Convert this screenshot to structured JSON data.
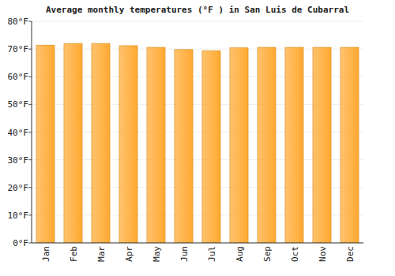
{
  "chart_data": {
    "type": "bar",
    "title": "Average monthly temperatures (°F ) in San Luis de Cubarral",
    "categories": [
      "Jan",
      "Feb",
      "Mar",
      "Apr",
      "May",
      "Jun",
      "Jul",
      "Aug",
      "Sep",
      "Oct",
      "Nov",
      "Dec"
    ],
    "values": [
      71.4,
      72,
      72,
      71.2,
      70.6,
      69.8,
      69.4,
      70.4,
      70.6,
      70.6,
      70.6,
      70.6
    ],
    "color": "#ffa930",
    "ylim": [
      0,
      80
    ],
    "yticks": [
      {
        "value": 0,
        "label": "0°F"
      },
      {
        "value": 10,
        "label": "10°F"
      },
      {
        "value": 20,
        "label": "20°F"
      },
      {
        "value": 30,
        "label": "30°F"
      },
      {
        "value": 40,
        "label": "40°F"
      },
      {
        "value": 50,
        "label": "50°F"
      },
      {
        "value": 60,
        "label": "60°F"
      },
      {
        "value": 70,
        "label": "70°F"
      },
      {
        "value": 80,
        "label": "80°F"
      }
    ],
    "grid": true
  }
}
